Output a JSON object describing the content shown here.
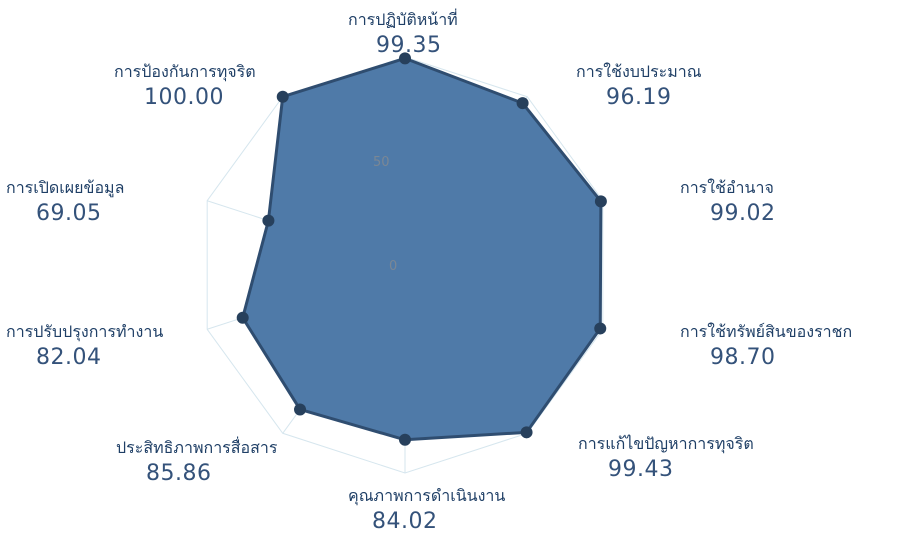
{
  "chart_data": {
    "type": "radar",
    "categories": [
      "การปฏิบัติหน้าที่",
      "การใช้งบประมาณ",
      "การใช้อำนาจ",
      "การใช้ทรัพย์สินของราชก",
      "การแก้ไขปัญหาการทุจริต",
      "คุณภาพการดำเนินงาน",
      "ประสิทธิภาพการสื่อสาร",
      "การปรับปรุงการทำงาน",
      "การเปิดเผยข้อมูล",
      "การป้องกันการทุจริต"
    ],
    "values": [
      99.35,
      96.19,
      99.02,
      98.7,
      99.43,
      84.02,
      85.86,
      82.04,
      69.05,
      100.0
    ],
    "value_labels": [
      "99.35",
      "96.19",
      "99.02",
      "98.70",
      "99.43",
      "84.02",
      "85.86",
      "82.04",
      "69.05",
      "100.00"
    ],
    "radial_ticks": [
      "0",
      "50"
    ],
    "rlim": [
      0,
      100
    ],
    "colors": {
      "fill": "#4f7aa8",
      "stroke": "#2f4d70",
      "point": "#27405c",
      "grid": "#d6e6ee"
    }
  }
}
